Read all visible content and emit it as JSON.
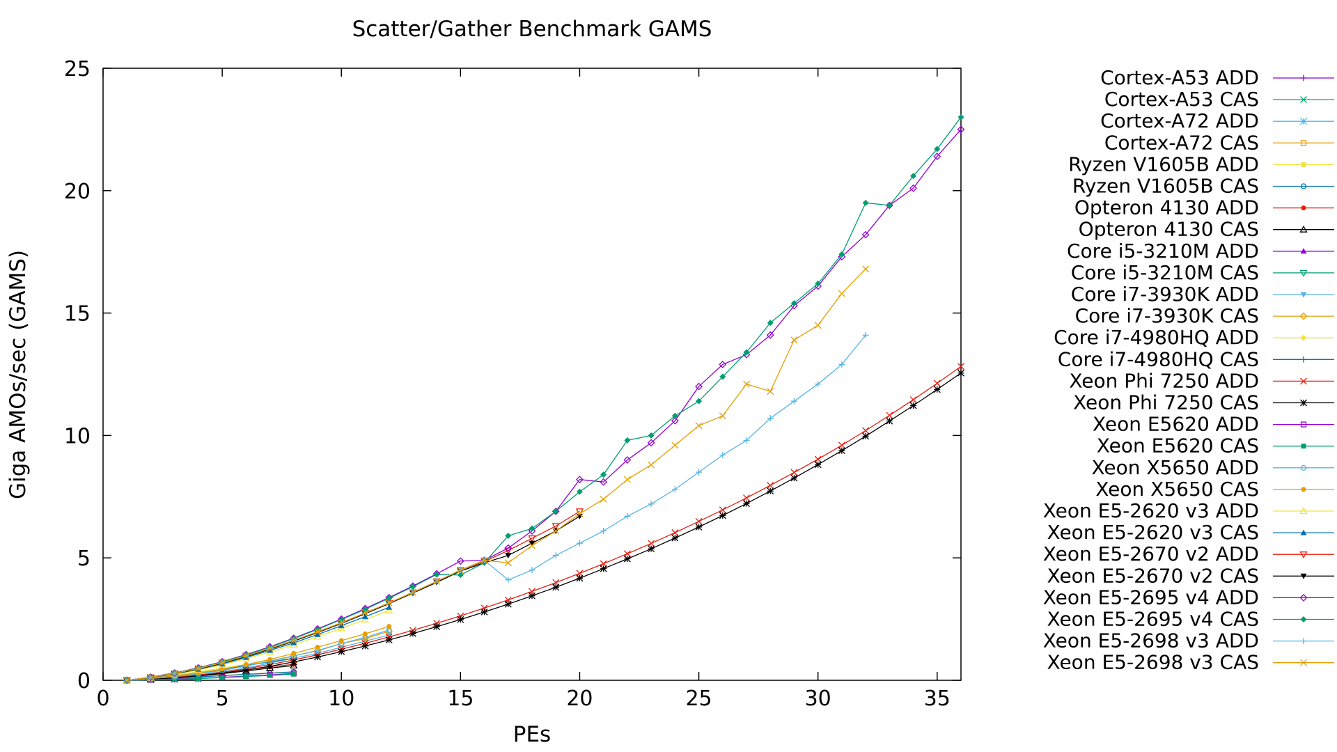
{
  "chart_data": {
    "type": "line",
    "title": "Scatter/Gather Benchmark GAMS",
    "xlabel": "PEs",
    "ylabel": "Giga AMOs/sec (GAMS)",
    "xlim": [
      0,
      36
    ],
    "ylim": [
      0,
      25
    ],
    "xticks": [
      "0",
      "5",
      "10",
      "15",
      "20",
      "25",
      "30",
      "35"
    ],
    "yticks": [
      "0",
      "5",
      "10",
      "15",
      "20",
      "25"
    ],
    "grid": false,
    "legend_position": "right",
    "series": [
      {
        "name": "Cortex-A53 ADD",
        "color": "#9400d3",
        "marker": "plus",
        "x": [
          1,
          2,
          3,
          4
        ],
        "y": [
          0,
          0.02,
          0.04,
          0.06
        ]
      },
      {
        "name": "Cortex-A53 CAS",
        "color": "#009e73",
        "marker": "cross",
        "x": [
          1,
          2,
          3,
          4
        ],
        "y": [
          0,
          0.02,
          0.03,
          0.05
        ]
      },
      {
        "name": "Cortex-A72 ADD",
        "color": "#56b4e9",
        "marker": "star",
        "x": [
          1,
          2,
          3,
          4
        ],
        "y": [
          0,
          0.03,
          0.06,
          0.09
        ]
      },
      {
        "name": "Cortex-A72 CAS",
        "color": "#e69f00",
        "marker": "square-open",
        "x": [
          1,
          2,
          3,
          4
        ],
        "y": [
          0,
          0.03,
          0.05,
          0.08
        ]
      },
      {
        "name": "Ryzen V1605B ADD",
        "color": "#f0e442",
        "marker": "square",
        "x": [
          1,
          2,
          3,
          4,
          5,
          6,
          7,
          8
        ],
        "y": [
          0,
          0.05,
          0.1,
          0.15,
          0.2,
          0.25,
          0.3,
          0.35
        ]
      },
      {
        "name": "Ryzen V1605B CAS",
        "color": "#0072b2",
        "marker": "circle-open",
        "x": [
          1,
          2,
          3,
          4,
          5,
          6,
          7,
          8
        ],
        "y": [
          0,
          0.04,
          0.09,
          0.14,
          0.19,
          0.24,
          0.29,
          0.34
        ]
      },
      {
        "name": "Opteron 4130 ADD",
        "color": "#e51e10",
        "marker": "circle",
        "x": [
          1,
          2,
          3,
          4,
          5,
          6,
          7,
          8
        ],
        "y": [
          0,
          0.06,
          0.12,
          0.2,
          0.3,
          0.42,
          0.55,
          0.65
        ]
      },
      {
        "name": "Opteron 4130 CAS",
        "color": "#000000",
        "marker": "triangle-open",
        "x": [
          1,
          2,
          3,
          4,
          5,
          6,
          7,
          8
        ],
        "y": [
          0,
          0.05,
          0.11,
          0.18,
          0.27,
          0.38,
          0.5,
          0.6
        ]
      },
      {
        "name": "Core i5-3210M ADD",
        "color": "#9400d3",
        "marker": "triangle",
        "x": [
          1,
          2,
          3,
          4
        ],
        "y": [
          0,
          0.08,
          0.16,
          0.24
        ]
      },
      {
        "name": "Core i5-3210M CAS",
        "color": "#009e73",
        "marker": "triangle-down-open",
        "x": [
          1,
          2,
          3,
          4
        ],
        "y": [
          0,
          0.07,
          0.15,
          0.23
        ]
      },
      {
        "name": "Core i7-3930K ADD",
        "color": "#56b4e9",
        "marker": "triangle-down",
        "x": [
          1,
          2,
          3,
          4,
          5,
          6,
          7,
          8,
          9,
          10,
          11,
          12
        ],
        "y": [
          0,
          0.05,
          0.12,
          0.22,
          0.35,
          0.5,
          0.7,
          0.9,
          1.1,
          1.35,
          1.6,
          1.85
        ]
      },
      {
        "name": "Core i7-3930K CAS",
        "color": "#e69f00",
        "marker": "diamond-open",
        "x": [
          1,
          2,
          3,
          4,
          5,
          6,
          7,
          8,
          9,
          10,
          11,
          12
        ],
        "y": [
          0,
          0.06,
          0.15,
          0.28,
          0.42,
          0.6,
          0.8,
          1.0,
          1.2,
          1.5,
          1.7,
          2.0
        ]
      },
      {
        "name": "Core i7-4980HQ ADD",
        "color": "#f0e442",
        "marker": "diamond",
        "x": [
          1,
          2,
          3,
          4,
          5,
          6,
          7,
          8
        ],
        "y": [
          0,
          0.1,
          0.2,
          0.35,
          0.5,
          0.65,
          0.8,
          0.95
        ]
      },
      {
        "name": "Core i7-4980HQ CAS",
        "color": "#0072b2",
        "marker": "plus",
        "x": [
          1,
          2,
          3,
          4,
          5,
          6,
          7,
          8
        ],
        "y": [
          0,
          0.09,
          0.18,
          0.3,
          0.45,
          0.6,
          0.75,
          0.9
        ]
      },
      {
        "name": "Xeon Phi 7250 ADD",
        "color": "#e51e10",
        "marker": "cross",
        "x": [
          1,
          2,
          3,
          4,
          5,
          6,
          7,
          8,
          9,
          10,
          11,
          12,
          13,
          14,
          15,
          16,
          17,
          18,
          19,
          20,
          21,
          22,
          23,
          24,
          25,
          26,
          27,
          28,
          29,
          30,
          31,
          32,
          33,
          34,
          35,
          36
        ],
        "y": [
          0,
          0.05,
          0.12,
          0.21,
          0.33,
          0.47,
          0.64,
          0.83,
          1.04,
          1.27,
          1.51,
          1.77,
          2.04,
          2.33,
          2.63,
          2.95,
          3.28,
          3.63,
          3.99,
          4.37,
          4.76,
          5.17,
          5.59,
          6.03,
          6.49,
          6.96,
          7.45,
          7.96,
          8.49,
          9.03,
          9.6,
          10.2,
          10.82,
          11.46,
          12.13,
          12.82
        ]
      },
      {
        "name": "Xeon Phi 7250 CAS",
        "color": "#000000",
        "marker": "star",
        "x": [
          1,
          2,
          3,
          4,
          5,
          6,
          7,
          8,
          9,
          10,
          11,
          12,
          13,
          14,
          15,
          16,
          17,
          18,
          19,
          20,
          21,
          22,
          23,
          24,
          25,
          26,
          27,
          28,
          29,
          30,
          31,
          32,
          33,
          34,
          35,
          36
        ],
        "y": [
          0,
          0.04,
          0.1,
          0.18,
          0.29,
          0.42,
          0.57,
          0.75,
          0.95,
          1.17,
          1.4,
          1.65,
          1.91,
          2.19,
          2.48,
          2.79,
          3.11,
          3.45,
          3.8,
          4.17,
          4.56,
          4.96,
          5.37,
          5.81,
          6.26,
          6.73,
          7.22,
          7.73,
          8.26,
          8.81,
          9.38,
          9.97,
          10.59,
          11.22,
          11.88,
          12.55
        ]
      },
      {
        "name": "Xeon E5620 ADD",
        "color": "#9400d3",
        "marker": "square-open",
        "x": [
          1,
          2,
          3,
          4,
          5,
          6,
          7,
          8
        ],
        "y": [
          0,
          0.02,
          0.05,
          0.08,
          0.12,
          0.17,
          0.22,
          0.28
        ]
      },
      {
        "name": "Xeon E5620 CAS",
        "color": "#009e73",
        "marker": "square",
        "x": [
          1,
          2,
          3,
          4,
          5,
          6,
          7,
          8
        ],
        "y": [
          0,
          0.02,
          0.04,
          0.07,
          0.11,
          0.15,
          0.2,
          0.25
        ]
      },
      {
        "name": "Xeon X5650 ADD",
        "color": "#56b4e9",
        "marker": "circle-open",
        "x": [
          1,
          2,
          3,
          4,
          5,
          6,
          7,
          8,
          9,
          10,
          11,
          12
        ],
        "y": [
          0,
          0.07,
          0.15,
          0.27,
          0.4,
          0.58,
          0.78,
          1.0,
          1.22,
          1.5,
          1.75,
          2.05
        ]
      },
      {
        "name": "Xeon X5650 CAS",
        "color": "#e69f00",
        "marker": "circle",
        "x": [
          1,
          2,
          3,
          4,
          5,
          6,
          7,
          8,
          9,
          10,
          11,
          12
        ],
        "y": [
          0,
          0.08,
          0.17,
          0.3,
          0.45,
          0.64,
          0.85,
          1.1,
          1.35,
          1.62,
          1.9,
          2.2
        ]
      },
      {
        "name": "Xeon E5-2620 v3 ADD",
        "color": "#f0e442",
        "marker": "triangle-open",
        "x": [
          1,
          2,
          3,
          4,
          5,
          6,
          7,
          8,
          9,
          10,
          11,
          12
        ],
        "y": [
          0,
          0.1,
          0.24,
          0.42,
          0.63,
          0.88,
          1.15,
          1.45,
          1.78,
          2.12,
          2.48,
          2.85
        ]
      },
      {
        "name": "Xeon E5-2620 v3 CAS",
        "color": "#0072b2",
        "marker": "triangle",
        "x": [
          1,
          2,
          3,
          4,
          5,
          6,
          7,
          8,
          9,
          10,
          11,
          12
        ],
        "y": [
          0,
          0.11,
          0.26,
          0.45,
          0.67,
          0.93,
          1.22,
          1.53,
          1.87,
          2.23,
          2.6,
          2.98
        ]
      },
      {
        "name": "Xeon E5-2670 v2 ADD",
        "color": "#e51e10",
        "marker": "triangle-down-open",
        "x": [
          1,
          2,
          3,
          4,
          5,
          6,
          7,
          8,
          9,
          10,
          11,
          12,
          13,
          14,
          15,
          16,
          17,
          18,
          19,
          20
        ],
        "y": [
          0,
          0.12,
          0.28,
          0.48,
          0.72,
          1.0,
          1.3,
          1.63,
          1.98,
          2.35,
          2.75,
          3.16,
          3.59,
          4.04,
          4.5,
          4.85,
          5.3,
          5.8,
          6.3,
          6.9
        ]
      },
      {
        "name": "Xeon E5-2670 v2 CAS",
        "color": "#000000",
        "marker": "triangle-down",
        "x": [
          1,
          2,
          3,
          4,
          5,
          6,
          7,
          8,
          9,
          10,
          11,
          12,
          13,
          14,
          15,
          16,
          17,
          18,
          19,
          20
        ],
        "y": [
          0,
          0.11,
          0.27,
          0.46,
          0.7,
          0.97,
          1.27,
          1.6,
          1.95,
          2.32,
          2.72,
          3.13,
          3.56,
          4.0,
          4.46,
          4.8,
          5.1,
          5.6,
          6.1,
          6.7
        ]
      },
      {
        "name": "Xeon E5-2695 v4 ADD",
        "color": "#9400d3",
        "marker": "diamond-open",
        "x": [
          1,
          2,
          3,
          4,
          5,
          6,
          7,
          8,
          9,
          10,
          11,
          12,
          13,
          14,
          15,
          16,
          17,
          18,
          19,
          20,
          21,
          22,
          23,
          24,
          25,
          26,
          27,
          28,
          29,
          30,
          31,
          32,
          33,
          34,
          35,
          36
        ],
        "y": [
          0,
          0.13,
          0.3,
          0.51,
          0.76,
          1.05,
          1.37,
          1.72,
          2.1,
          2.5,
          2.93,
          3.38,
          3.85,
          4.35,
          4.87,
          4.9,
          5.4,
          6.1,
          6.9,
          8.2,
          8.1,
          9.0,
          9.7,
          10.6,
          12.0,
          12.9,
          13.3,
          14.1,
          15.3,
          16.1,
          17.3,
          18.2,
          19.4,
          20.1,
          21.4,
          22.5
        ]
      },
      {
        "name": "Xeon E5-2695 v4 CAS",
        "color": "#009e73",
        "marker": "diamond",
        "x": [
          1,
          2,
          3,
          4,
          5,
          6,
          7,
          8,
          9,
          10,
          11,
          12,
          13,
          14,
          15,
          16,
          17,
          18,
          19,
          20,
          21,
          22,
          23,
          24,
          25,
          26,
          27,
          28,
          29,
          30,
          31,
          32,
          33,
          34,
          35,
          36
        ],
        "y": [
          0,
          0.12,
          0.29,
          0.5,
          0.75,
          1.03,
          1.35,
          1.7,
          2.08,
          2.48,
          2.9,
          3.35,
          3.82,
          4.32,
          4.3,
          4.8,
          5.9,
          6.2,
          6.9,
          7.7,
          8.4,
          9.8,
          10.0,
          10.8,
          11.4,
          12.4,
          13.4,
          14.6,
          15.4,
          16.2,
          17.4,
          19.5,
          19.4,
          20.6,
          21.7,
          23.0
        ]
      },
      {
        "name": "Xeon E5-2698 v3 ADD",
        "color": "#56b4e9",
        "marker": "plus",
        "x": [
          1,
          2,
          3,
          4,
          5,
          6,
          7,
          8,
          9,
          10,
          11,
          12,
          13,
          14,
          15,
          16,
          17,
          18,
          19,
          20,
          21,
          22,
          23,
          24,
          25,
          26,
          27,
          28,
          29,
          30,
          31,
          32
        ],
        "y": [
          0,
          0.12,
          0.28,
          0.48,
          0.72,
          1.0,
          1.3,
          1.63,
          1.98,
          2.35,
          2.75,
          3.16,
          3.59,
          4.04,
          4.5,
          4.9,
          4.1,
          4.5,
          5.1,
          5.6,
          6.1,
          6.7,
          7.2,
          7.8,
          8.5,
          9.2,
          9.8,
          10.7,
          11.4,
          12.1,
          12.9,
          14.1
        ]
      },
      {
        "name": "Xeon E5-2698 v3 CAS",
        "color": "#e69f00",
        "marker": "cross",
        "x": [
          1,
          2,
          3,
          4,
          5,
          6,
          7,
          8,
          9,
          10,
          11,
          12,
          13,
          14,
          15,
          16,
          17,
          18,
          19,
          20,
          21,
          22,
          23,
          24,
          25,
          26,
          27,
          28,
          29,
          30,
          31,
          32
        ],
        "y": [
          0,
          0.12,
          0.28,
          0.48,
          0.72,
          1.0,
          1.3,
          1.63,
          1.98,
          2.35,
          2.75,
          3.16,
          3.59,
          4.04,
          4.5,
          4.9,
          4.8,
          5.5,
          6.1,
          6.8,
          7.4,
          8.2,
          8.8,
          9.6,
          10.4,
          10.8,
          12.1,
          11.8,
          13.9,
          14.5,
          15.8,
          16.8
        ]
      }
    ]
  }
}
